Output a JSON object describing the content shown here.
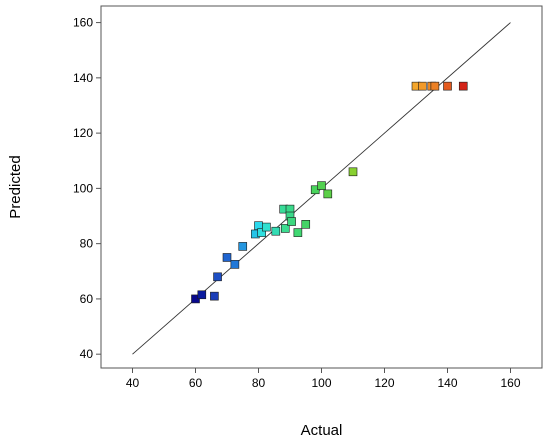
{
  "chart_data": {
    "type": "scatter",
    "title": "",
    "xlabel": "Actual",
    "ylabel": "Predicted",
    "xlim": [
      30,
      170
    ],
    "ylim": [
      35,
      166
    ],
    "xticks": [
      40,
      60,
      80,
      100,
      120,
      140,
      160
    ],
    "yticks": [
      40,
      60,
      80,
      100,
      120,
      140,
      160
    ],
    "grid": false,
    "legend": "none",
    "reference_line": {
      "from": [
        40,
        40
      ],
      "to": [
        160,
        160
      ],
      "color": "#333333"
    },
    "colors": {
      "axis": "#555555",
      "marker_edge": "#1a1a1a"
    },
    "points": [
      {
        "x": 60,
        "y": 60,
        "color": "#08088c"
      },
      {
        "x": 62,
        "y": 61.5,
        "color": "#0a1a9e"
      },
      {
        "x": 66,
        "y": 61,
        "color": "#1a3db8"
      },
      {
        "x": 67,
        "y": 68,
        "color": "#1e4fc4"
      },
      {
        "x": 70,
        "y": 75,
        "color": "#1f64d0"
      },
      {
        "x": 72.5,
        "y": 72.5,
        "color": "#2178d8"
      },
      {
        "x": 75,
        "y": 79,
        "color": "#2496e0"
      },
      {
        "x": 79,
        "y": 83.5,
        "color": "#25c4e8"
      },
      {
        "x": 80,
        "y": 86.5,
        "color": "#2ad8ec"
      },
      {
        "x": 81,
        "y": 84,
        "color": "#2ee0e0"
      },
      {
        "x": 82.5,
        "y": 86,
        "color": "#30e0d0"
      },
      {
        "x": 85.5,
        "y": 84.5,
        "color": "#34dcb4"
      },
      {
        "x": 88,
        "y": 92.5,
        "color": "#38dc98"
      },
      {
        "x": 88.5,
        "y": 85.5,
        "color": "#3cdc90"
      },
      {
        "x": 90,
        "y": 92.5,
        "color": "#3ad88a"
      },
      {
        "x": 90,
        "y": 90,
        "color": "#3ad88a"
      },
      {
        "x": 90.5,
        "y": 88,
        "color": "#3cd87e"
      },
      {
        "x": 92.5,
        "y": 84,
        "color": "#40d872"
      },
      {
        "x": 95,
        "y": 87,
        "color": "#44d466"
      },
      {
        "x": 98,
        "y": 99.5,
        "color": "#48d45c"
      },
      {
        "x": 100,
        "y": 101,
        "color": "#52d050"
      },
      {
        "x": 102,
        "y": 98,
        "color": "#5cd048"
      },
      {
        "x": 110,
        "y": 106,
        "color": "#88d030"
      },
      {
        "x": 130,
        "y": 137,
        "color": "#f4a62c"
      },
      {
        "x": 132,
        "y": 137,
        "color": "#f29a2a"
      },
      {
        "x": 135,
        "y": 137,
        "color": "#ee8a26"
      },
      {
        "x": 136,
        "y": 137,
        "color": "#ec8024"
      },
      {
        "x": 140,
        "y": 137,
        "color": "#e45a1e"
      },
      {
        "x": 145,
        "y": 137,
        "color": "#d42418"
      }
    ]
  }
}
